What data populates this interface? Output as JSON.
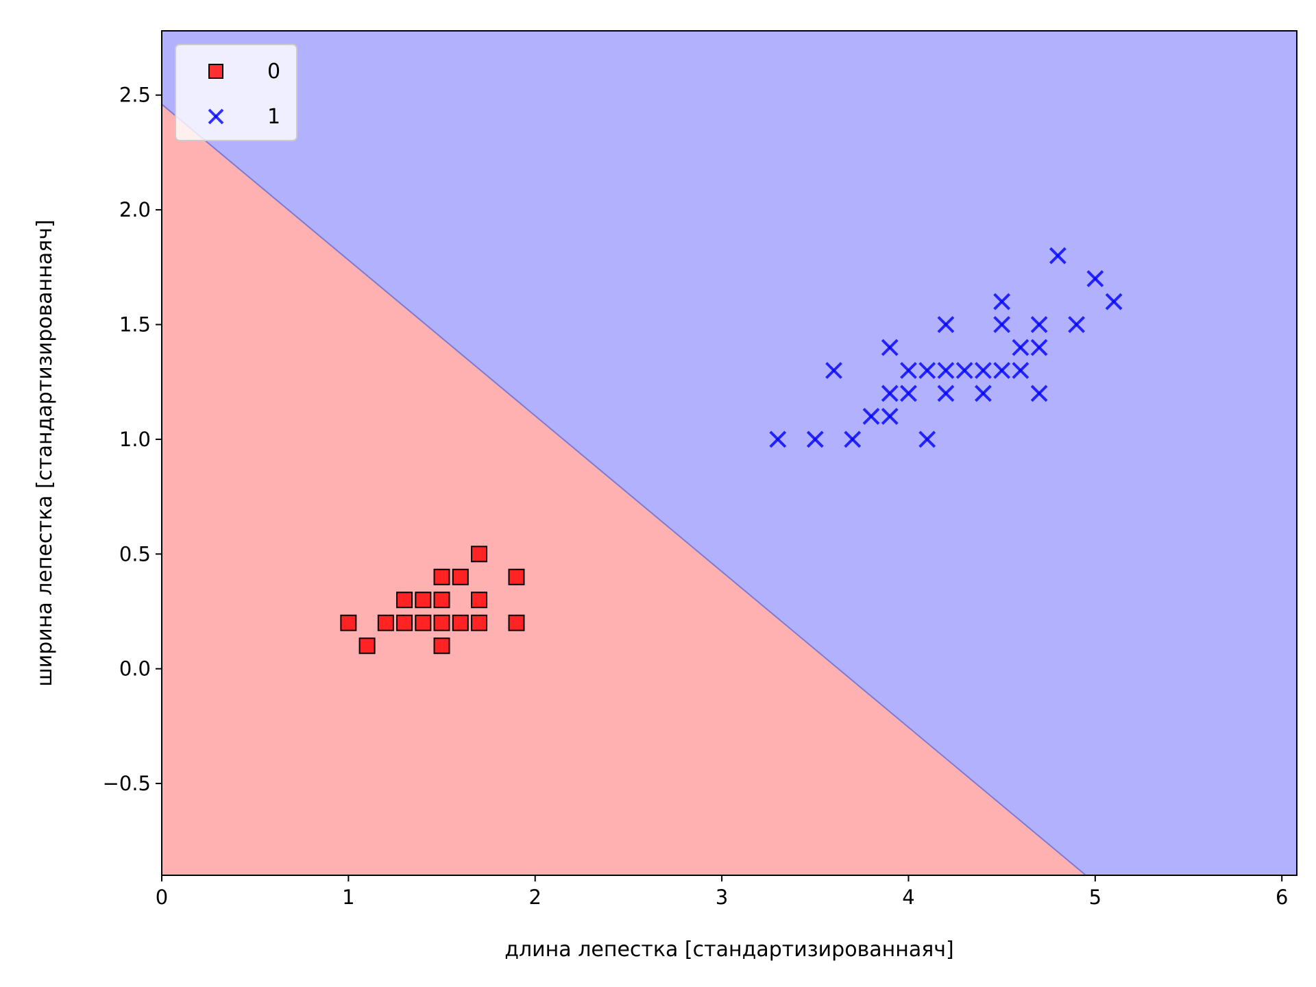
{
  "chart_data": {
    "type": "scatter",
    "title": "",
    "xlabel": "длина лепестка [стандартизированнаяч]",
    "ylabel": "ширина лепестка [стандартизированнаяч]",
    "xlim": [
      0,
      6.08
    ],
    "ylim": [
      -0.9,
      2.78
    ],
    "xticks": [
      0,
      1,
      2,
      3,
      4,
      5,
      6
    ],
    "yticks": [
      -0.5,
      0.0,
      0.5,
      1.0,
      1.5,
      2.0,
      2.5
    ],
    "xtick_labels": [
      "0",
      "1",
      "2",
      "3",
      "4",
      "5",
      "6"
    ],
    "ytick_labels": [
      "−0.5",
      "0.0",
      "0.5",
      "1.0",
      "1.5",
      "2.0",
      "2.5"
    ],
    "grid": false,
    "legend_position": "upper-left",
    "decision_boundary": {
      "points": [
        [
          0,
          2.46
        ],
        [
          4.95,
          -0.9
        ]
      ],
      "region_colors": [
        "#ffb0b1",
        "#b1b1fd"
      ],
      "boundary_color": "#7b7bd6"
    },
    "series": [
      {
        "name": "0",
        "marker": "square",
        "color": "#ff0000",
        "edge_color": "#000000",
        "points": [
          [
            1.0,
            0.2
          ],
          [
            1.1,
            0.1
          ],
          [
            1.2,
            0.2
          ],
          [
            1.3,
            0.2
          ],
          [
            1.3,
            0.3
          ],
          [
            1.4,
            0.2
          ],
          [
            1.4,
            0.3
          ],
          [
            1.5,
            0.1
          ],
          [
            1.5,
            0.2
          ],
          [
            1.5,
            0.3
          ],
          [
            1.5,
            0.4
          ],
          [
            1.6,
            0.2
          ],
          [
            1.6,
            0.4
          ],
          [
            1.7,
            0.2
          ],
          [
            1.7,
            0.3
          ],
          [
            1.7,
            0.5
          ],
          [
            1.9,
            0.2
          ],
          [
            1.9,
            0.4
          ]
        ]
      },
      {
        "name": "1",
        "marker": "x",
        "color": "#0000ff",
        "points": [
          [
            3.3,
            1.0
          ],
          [
            3.5,
            1.0
          ],
          [
            3.6,
            1.3
          ],
          [
            3.7,
            1.0
          ],
          [
            3.8,
            1.1
          ],
          [
            3.9,
            1.1
          ],
          [
            3.9,
            1.2
          ],
          [
            3.9,
            1.4
          ],
          [
            4.0,
            1.2
          ],
          [
            4.0,
            1.3
          ],
          [
            4.1,
            1.0
          ],
          [
            4.1,
            1.3
          ],
          [
            4.2,
            1.2
          ],
          [
            4.2,
            1.3
          ],
          [
            4.2,
            1.5
          ],
          [
            4.3,
            1.3
          ],
          [
            4.4,
            1.2
          ],
          [
            4.4,
            1.3
          ],
          [
            4.5,
            1.3
          ],
          [
            4.5,
            1.5
          ],
          [
            4.5,
            1.6
          ],
          [
            4.6,
            1.3
          ],
          [
            4.6,
            1.4
          ],
          [
            4.7,
            1.2
          ],
          [
            4.7,
            1.4
          ],
          [
            4.7,
            1.5
          ],
          [
            4.8,
            1.8
          ],
          [
            4.9,
            1.5
          ],
          [
            5.0,
            1.7
          ],
          [
            5.1,
            1.6
          ]
        ]
      }
    ]
  }
}
